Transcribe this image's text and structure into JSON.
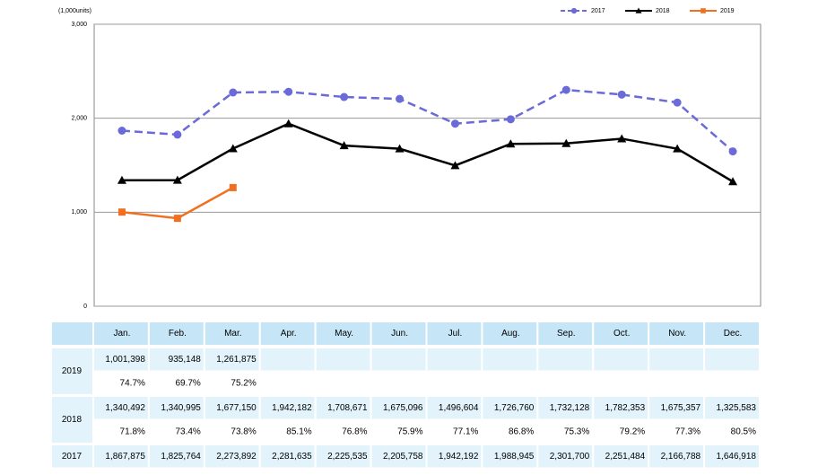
{
  "chart_data": {
    "type": "line",
    "unit_label": "(1,000units)",
    "categories": [
      "Jan.",
      "Feb.",
      "Mar.",
      "Apr.",
      "May.",
      "Jun.",
      "Jul.",
      "Aug.",
      "Sep.",
      "Oct.",
      "Nov.",
      "Dec."
    ],
    "series": [
      {
        "name": "2017",
        "color": "#6a6ad8",
        "dashed": true,
        "marker": "circle",
        "values": [
          1867.875,
          1825.764,
          2273.892,
          2281.635,
          2225.535,
          2205.758,
          1942.192,
          1988.945,
          2301.7,
          2251.484,
          2166.788,
          1646.918
        ],
        "value_labels": [
          "1,867,875",
          "1,825,764",
          "2,273,892",
          "2,281,635",
          "2,225,535",
          "2,205,758",
          "1,942,192",
          "1,988,945",
          "2,301,700",
          "2,251,484",
          "2,166,788",
          "1,646,918"
        ]
      },
      {
        "name": "2018",
        "color": "#000000",
        "dashed": false,
        "marker": "triangle",
        "values": [
          1340.492,
          1340.995,
          1677.15,
          1942.182,
          1708.671,
          1675.096,
          1496.604,
          1726.76,
          1732.128,
          1782.353,
          1675.357,
          1325.583
        ],
        "value_labels": [
          "1,340,492",
          "1,340,995",
          "1,677,150",
          "1,942,182",
          "1,708,671",
          "1,675,096",
          "1,496,604",
          "1,726,760",
          "1,732,128",
          "1,782,353",
          "1,675,357",
          "1,325,583"
        ],
        "ratio_labels": [
          "71.8%",
          "73.4%",
          "73.8%",
          "85.1%",
          "76.8%",
          "75.9%",
          "77.1%",
          "86.8%",
          "75.3%",
          "79.2%",
          "77.3%",
          "80.5%"
        ]
      },
      {
        "name": "2019",
        "color": "#f07020",
        "dashed": false,
        "marker": "square",
        "values": [
          1001.398,
          935.148,
          1261.875,
          null,
          null,
          null,
          null,
          null,
          null,
          null,
          null,
          null
        ],
        "value_labels": [
          "1,001,398",
          "935,148",
          "1,261,875",
          null,
          null,
          null,
          null,
          null,
          null,
          null,
          null,
          null
        ],
        "ratio_labels": [
          "74.7%",
          "69.7%",
          "75.2%",
          null,
          null,
          null,
          null,
          null,
          null,
          null,
          null,
          null
        ]
      }
    ],
    "ylim": [
      0,
      3000
    ],
    "yticks": [
      0,
      {
        "value": 1000,
        "label": "1,000"
      },
      {
        "value": 2000,
        "label": "2,000"
      },
      {
        "value": 3000,
        "label": "3,000"
      }
    ],
    "grid": true,
    "legend": "top-right"
  }
}
